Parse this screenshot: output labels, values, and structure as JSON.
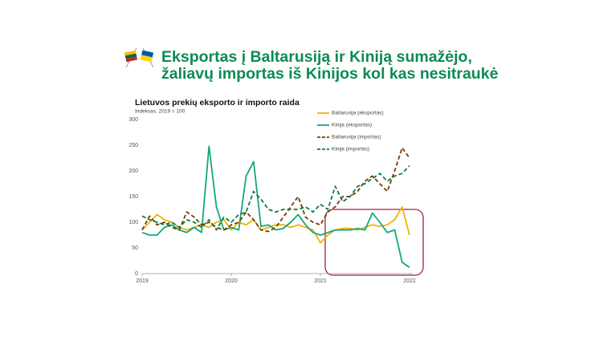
{
  "slide": {
    "title_lines": [
      "Eksportas į Baltarusiją ir Kiniją sumažėjo,",
      "žaliavų importas iš Kinijos kol kas nesitraukė"
    ]
  },
  "chart_data": {
    "type": "line",
    "title": "Lietuvos prekių eksporto ir importo raida",
    "subtitle": "Indeksas, 2019 = 100",
    "categories": [
      "2019",
      null,
      null,
      null,
      null,
      null,
      null,
      null,
      null,
      null,
      null,
      null,
      "2020",
      null,
      null,
      null,
      null,
      null,
      null,
      null,
      null,
      null,
      null,
      null,
      "2021",
      null,
      null,
      null,
      null,
      null,
      null,
      null,
      null,
      null,
      null,
      null,
      "2022"
    ],
    "series": [
      {
        "name": "Baltarusija (eksportas)",
        "color": "#f2b200",
        "dashed": false,
        "values": [
          85,
          100,
          115,
          105,
          100,
          90,
          85,
          90,
          95,
          90,
          100,
          105,
          85,
          100,
          95,
          105,
          85,
          90,
          95,
          95,
          90,
          95,
          90,
          85,
          60,
          75,
          85,
          88,
          88,
          85,
          90,
          95,
          92,
          95,
          105,
          130,
          75
        ]
      },
      {
        "name": "Kinija (eksportas)",
        "color": "#13a77a",
        "dashed": false,
        "values": [
          80,
          75,
          75,
          90,
          95,
          85,
          80,
          90,
          80,
          248,
          130,
          85,
          90,
          85,
          190,
          218,
          92,
          95,
          85,
          88,
          100,
          115,
          95,
          80,
          75,
          80,
          85,
          85,
          85,
          88,
          85,
          118,
          100,
          80,
          85,
          22,
          12
        ]
      },
      {
        "name": "Baltarusija (importas)",
        "color": "#7a3b00",
        "dashed": true,
        "values": [
          85,
          112,
          95,
          100,
          90,
          85,
          120,
          110,
          95,
          100,
          90,
          85,
          95,
          100,
          120,
          105,
          85,
          82,
          90,
          110,
          130,
          150,
          110,
          100,
          95,
          120,
          130,
          150,
          150,
          160,
          180,
          190,
          175,
          160,
          200,
          245,
          225
        ]
      },
      {
        "name": "Kinija (importas)",
        "color": "#0b7d45",
        "dashed": true,
        "values": [
          112,
          105,
          100,
          95,
          100,
          90,
          105,
          100,
          90,
          105,
          85,
          110,
          100,
          115,
          120,
          160,
          145,
          125,
          120,
          125,
          125,
          125,
          130,
          120,
          135,
          125,
          170,
          140,
          150,
          170,
          175,
          185,
          195,
          180,
          190,
          195,
          210
        ]
      }
    ],
    "ylim": [
      0,
      300
    ],
    "yticks": [
      0,
      50,
      100,
      150,
      200,
      250,
      300
    ],
    "grid": false
  }
}
